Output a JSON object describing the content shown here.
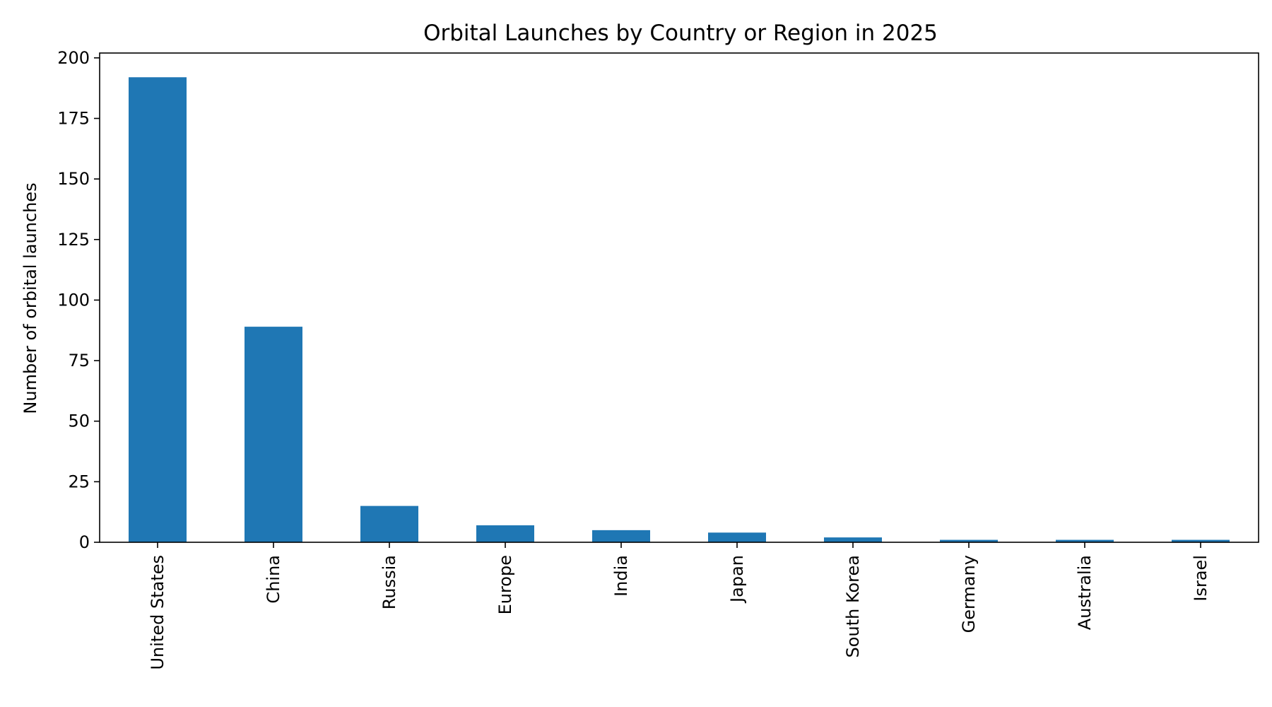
{
  "chart_data": {
    "type": "bar",
    "title": "Orbital Launches by Country or Region in 2025",
    "xlabel": "",
    "ylabel": "Number of orbital launches",
    "categories": [
      "United States",
      "China",
      "Russia",
      "Europe",
      "India",
      "Japan",
      "South Korea",
      "Germany",
      "Australia",
      "Israel"
    ],
    "values": [
      192,
      89,
      15,
      7,
      5,
      4,
      2,
      1,
      1,
      1
    ],
    "ylim": [
      0,
      202
    ],
    "yticks": [
      0,
      25,
      50,
      75,
      100,
      125,
      150,
      175,
      200
    ],
    "ytick_labels": [
      "0",
      "25",
      "50",
      "75",
      "100",
      "125",
      "150",
      "175",
      "200"
    ],
    "bar_color": "#1f77b4",
    "grid": false,
    "legend": "none"
  }
}
